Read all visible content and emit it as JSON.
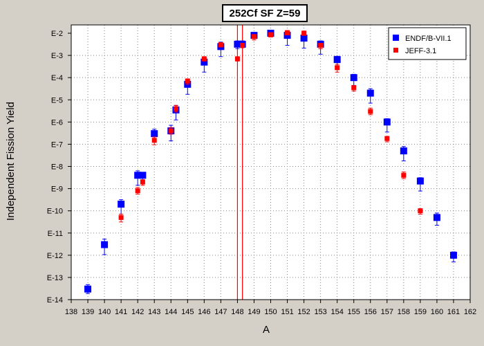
{
  "chart_data": {
    "type": "scatter",
    "title": "252Cf SF Z=59",
    "xlabel": "A",
    "ylabel": "Independent Fission Yield",
    "xlim": [
      138,
      162
    ],
    "ylim_exponent": [
      -14,
      -2
    ],
    "y_scale": "log",
    "x_ticks": [
      "138",
      "139",
      "140",
      "141",
      "142",
      "143",
      "144",
      "145",
      "146",
      "147",
      "148",
      "149",
      "150",
      "151",
      "152",
      "153",
      "154",
      "155",
      "156",
      "157",
      "158",
      "159",
      "160",
      "161",
      "162"
    ],
    "y_ticks": [
      "E-2",
      "E-3",
      "E-4",
      "E-5",
      "E-6",
      "E-7",
      "E-8",
      "E-9",
      "E-10",
      "E-11",
      "E-12",
      "E-13",
      "E-14"
    ],
    "grid": true,
    "legend_position": "top-right",
    "series": [
      {
        "name": "ENDF/B-VII.1",
        "color": "#0000ff",
        "marker": "square",
        "points": [
          {
            "x": 139,
            "y": 3e-14,
            "err_lo_exp": 0.2,
            "err_hi_exp": 0.2
          },
          {
            "x": 140,
            "y": 3e-12,
            "err_lo_exp": 0.45,
            "err_hi_exp": 0.25
          },
          {
            "x": 141,
            "y": 2e-10,
            "err_lo_exp": 0.45,
            "err_hi_exp": 0.2
          },
          {
            "x": 142,
            "y": 4e-09,
            "err_lo_exp": 0.45,
            "err_hi_exp": 0.2
          },
          {
            "x": 142.3,
            "y": 4e-09,
            "err_lo_exp": 0.3,
            "err_hi_exp": 0.1
          },
          {
            "x": 143,
            "y": 3e-07,
            "err_lo_exp": 0.35,
            "err_hi_exp": 0.2
          },
          {
            "x": 144,
            "y": 4e-07,
            "err_lo_exp": 0.45,
            "err_hi_exp": 0.25
          },
          {
            "x": 144.3,
            "y": 3.5e-06,
            "err_lo_exp": 0.45,
            "err_hi_exp": 0.2
          },
          {
            "x": 145,
            "y": 5e-05,
            "err_lo_exp": 0.45,
            "err_hi_exp": 0.2
          },
          {
            "x": 146,
            "y": 0.0005,
            "err_lo_exp": 0.45,
            "err_hi_exp": 0.15
          },
          {
            "x": 147,
            "y": 0.0025,
            "err_lo_exp": 0.45,
            "err_hi_exp": 0.2
          },
          {
            "x": 148,
            "y": 0.0032,
            "err_lo_exp": 0.2,
            "err_hi_exp": 0.15
          },
          {
            "x": 148.3,
            "y": 0.0032,
            "err_lo_exp": 0.15,
            "err_hi_exp": 0.15
          },
          {
            "x": 149,
            "y": 0.008,
            "err_lo_exp": 0.15,
            "err_hi_exp": 0.1
          },
          {
            "x": 150,
            "y": 0.01,
            "err_lo_exp": 0.1,
            "err_hi_exp": 0.1
          },
          {
            "x": 151,
            "y": 0.008,
            "err_lo_exp": 0.45,
            "err_hi_exp": 0.15
          },
          {
            "x": 152,
            "y": 0.006,
            "err_lo_exp": 0.45,
            "err_hi_exp": 0.2
          },
          {
            "x": 153,
            "y": 0.0032,
            "err_lo_exp": 0.45,
            "err_hi_exp": 0.15
          },
          {
            "x": 154,
            "y": 0.00065,
            "err_lo_exp": 0.4,
            "err_hi_exp": 0.15
          },
          {
            "x": 155,
            "y": 0.0001,
            "err_lo_exp": 0.35,
            "err_hi_exp": 0.15
          },
          {
            "x": 156,
            "y": 2e-05,
            "err_lo_exp": 0.45,
            "err_hi_exp": 0.2
          },
          {
            "x": 157,
            "y": 1e-06,
            "err_lo_exp": 0.45,
            "err_hi_exp": 0.15
          },
          {
            "x": 158,
            "y": 5e-08,
            "err_lo_exp": 0.45,
            "err_hi_exp": 0.2
          },
          {
            "x": 159,
            "y": 2.2e-09,
            "err_lo_exp": 0.45,
            "err_hi_exp": 0.15
          },
          {
            "x": 160,
            "y": 5e-11,
            "err_lo_exp": 0.35,
            "err_hi_exp": 0.2
          },
          {
            "x": 161,
            "y": 1e-12,
            "err_lo_exp": 0.3,
            "err_hi_exp": 0.15
          }
        ]
      },
      {
        "name": "JEFF-3.1",
        "color": "#ff0000",
        "marker": "square",
        "points": [
          {
            "x": 141,
            "y": 5e-11,
            "err_lo_exp": 0.2,
            "err_hi_exp": 0.15
          },
          {
            "x": 142,
            "y": 8e-10,
            "err_lo_exp": 0.15,
            "err_hi_exp": 0.15
          },
          {
            "x": 142.3,
            "y": 2e-09,
            "err_lo_exp": 0.15,
            "err_hi_exp": 0.1
          },
          {
            "x": 143,
            "y": 1.5e-07,
            "err_lo_exp": 0.2,
            "err_hi_exp": 0.15
          },
          {
            "x": 144,
            "y": 4e-07,
            "err_lo_exp": 0.15,
            "err_hi_exp": 0.15
          },
          {
            "x": 144.3,
            "y": 4e-06,
            "err_lo_exp": 0.15,
            "err_hi_exp": 0.15
          },
          {
            "x": 145,
            "y": 7e-05,
            "err_lo_exp": 0.15,
            "err_hi_exp": 0.1
          },
          {
            "x": 146,
            "y": 0.0007,
            "err_lo_exp": 0.1,
            "err_hi_exp": 0.1
          },
          {
            "x": 147,
            "y": 0.003,
            "err_lo_exp": 0.1,
            "err_hi_exp": 0.1
          },
          {
            "x": 148,
            "y": 0.0007,
            "err_lo_exp": 0.1,
            "err_hi_exp": 0.1
          },
          {
            "x": 148.3,
            "y": 0.0028,
            "err_lo_exp": 0.1,
            "err_hi_exp": 0.1
          },
          {
            "x": 149,
            "y": 0.007,
            "err_lo_exp": 0.15,
            "err_hi_exp": 0.1
          },
          {
            "x": 150,
            "y": 0.0085,
            "err_lo_exp": 0.1,
            "err_hi_exp": 0.1
          },
          {
            "x": 151,
            "y": 0.0105,
            "err_lo_exp": 0.1,
            "err_hi_exp": 0.1
          },
          {
            "x": 152,
            "y": 0.01,
            "err_lo_exp": 0.1,
            "err_hi_exp": 0.1
          },
          {
            "x": 153,
            "y": 0.0028,
            "err_lo_exp": 0.15,
            "err_hi_exp": 0.1
          },
          {
            "x": 154,
            "y": 0.00028,
            "err_lo_exp": 0.2,
            "err_hi_exp": 0.15
          },
          {
            "x": 155,
            "y": 3.5e-05,
            "err_lo_exp": 0.15,
            "err_hi_exp": 0.1
          },
          {
            "x": 156,
            "y": 3e-06,
            "err_lo_exp": 0.15,
            "err_hi_exp": 0.15
          },
          {
            "x": 157,
            "y": 1.8e-07,
            "err_lo_exp": 0.15,
            "err_hi_exp": 0.1
          },
          {
            "x": 158,
            "y": 4e-09,
            "err_lo_exp": 0.15,
            "err_hi_exp": 0.15
          },
          {
            "x": 159,
            "y": 1e-10,
            "err_lo_exp": 0.15,
            "err_hi_exp": 0.1
          }
        ]
      }
    ],
    "vertical_lines": [
      {
        "x": 148.0,
        "color": "#ff0000"
      },
      {
        "x": 148.3,
        "color": "#ff0000"
      }
    ]
  }
}
